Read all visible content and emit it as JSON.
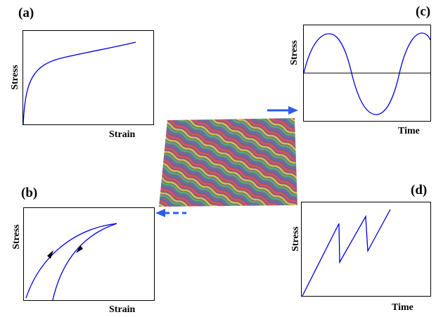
{
  "panels": [
    {
      "label": "(a)",
      "y_label": "Stress",
      "x_label": "Strain"
    },
    {
      "label": "(b)",
      "y_label": "Stress",
      "x_label": "Strain"
    },
    {
      "label": "(c)",
      "y_label": "Stress",
      "x_label": "Time"
    },
    {
      "label": "(d)",
      "y_label": "Stress",
      "x_label": "Time"
    }
  ]
}
